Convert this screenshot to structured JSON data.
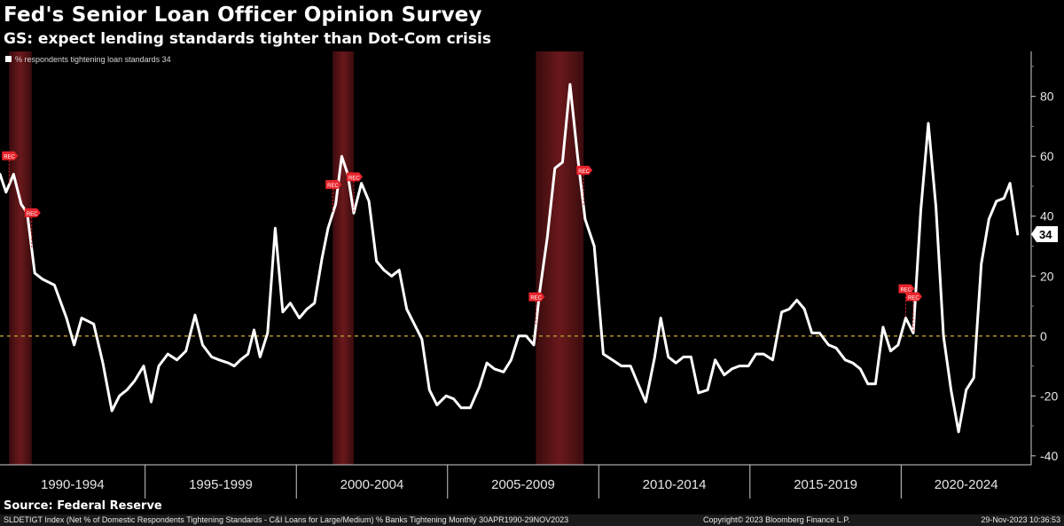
{
  "header": {
    "title": "Fed's Senior Loan Officer Opinion Survey",
    "subtitle": "GS: expect lending standards tighter than Dot-Com crisis"
  },
  "footer": {
    "source": "Source: Federal Reserve",
    "index_note": "SLDETIGT Index (Net % of Domestic Respondents Tightening Standards - C&I Loans for Large/Medium) % Banks Tightening  Monthly 30APR1990-29NOV2023",
    "copyright": "Copyright© 2023 Bloomberg Finance L.P.",
    "timestamp": "29-Nov-2023 10:36:53"
  },
  "colors": {
    "background": "#000000",
    "line": "#ffffff",
    "recession_shade": "#5a1416",
    "zero_line": "#a08a2c",
    "rec_marker": "#e8242c"
  },
  "chart_data": {
    "type": "line",
    "title": "Fed's Senior Loan Officer Opinion Survey",
    "subtitle": "GS: expect lending standards tighter than Dot-Com crisis",
    "legend": {
      "label": "% respondents tightening loan standards 34",
      "placement": "top-left"
    },
    "last_value_label": "34",
    "ylim": [
      -43,
      95
    ],
    "y_ticks": [
      -40,
      -20,
      0,
      20,
      40,
      60,
      80
    ],
    "y_tick_labels": [
      "-40",
      "-20",
      "0",
      "20",
      "40",
      "60",
      "80"
    ],
    "xlim": [
      1990.2,
      2024.3
    ],
    "x_period_labels": [
      "1990-1994",
      "1995-1999",
      "2000-2004",
      "2005-2009",
      "2010-2014",
      "2015-2019",
      "2020-2024"
    ],
    "x_period_bounds": [
      1990,
      1995,
      2000,
      2005,
      2010,
      2015,
      2020,
      2025
    ],
    "zero_line": true,
    "grid": false,
    "recessions": [
      [
        1990.5,
        1991.25
      ],
      [
        2001.2,
        2001.9
      ],
      [
        2007.92,
        2009.5
      ]
    ],
    "rec_marker_label": "REC",
    "series": [
      {
        "name": "% respondents tightening loan standards",
        "x": [
          1990.2,
          1990.4,
          1990.65,
          1990.9,
          1991.1,
          1991.35,
          1991.6,
          1992.0,
          1992.4,
          1992.65,
          1992.9,
          1993.3,
          1993.6,
          1993.9,
          1994.15,
          1994.4,
          1994.65,
          1994.95,
          1995.2,
          1995.45,
          1995.75,
          1996.05,
          1996.35,
          1996.65,
          1996.9,
          1997.2,
          1997.45,
          1997.75,
          1997.95,
          1998.15,
          1998.4,
          1998.6,
          1998.8,
          1999.05,
          1999.3,
          1999.55,
          1999.8,
          2000.1,
          2000.35,
          2000.6,
          2000.85,
          2001.05,
          2001.3,
          2001.5,
          2001.7,
          2001.9,
          2002.15,
          2002.4,
          2002.65,
          2002.9,
          2003.15,
          2003.4,
          2003.65,
          2003.9,
          2004.15,
          2004.4,
          2004.65,
          2004.95,
          2005.2,
          2005.45,
          2005.75,
          2006.05,
          2006.3,
          2006.55,
          2006.85,
          2007.1,
          2007.35,
          2007.6,
          2007.85,
          2008.05,
          2008.3,
          2008.55,
          2008.8,
          2009.05,
          2009.3,
          2009.55,
          2009.85,
          2010.15,
          2010.45,
          2010.75,
          2011.05,
          2011.3,
          2011.55,
          2011.85,
          2012.05,
          2012.3,
          2012.55,
          2012.8,
          2013.05,
          2013.3,
          2013.6,
          2013.85,
          2014.15,
          2014.4,
          2014.65,
          2014.95,
          2015.2,
          2015.45,
          2015.75,
          2016.05,
          2016.3,
          2016.55,
          2016.8,
          2017.05,
          2017.3,
          2017.6,
          2017.85,
          2018.15,
          2018.4,
          2018.65,
          2018.9,
          2019.15,
          2019.4,
          2019.65,
          2019.9,
          2020.15,
          2020.4,
          2020.65,
          2020.9,
          2021.15,
          2021.4,
          2021.65,
          2021.9,
          2022.15,
          2022.4,
          2022.65,
          2022.9,
          2023.15,
          2023.4,
          2023.6,
          2023.85
        ],
        "values": [
          54,
          48,
          54,
          44,
          41,
          21,
          19,
          17,
          6,
          -3,
          6,
          4,
          -9,
          -25,
          -20,
          -18,
          -15,
          -10,
          -22,
          -10,
          -6,
          -8,
          -5,
          7,
          -3,
          -7,
          -8,
          -9,
          -10,
          -8,
          -6,
          2,
          -7,
          1,
          36,
          8,
          11,
          6,
          9,
          11,
          26,
          36,
          44,
          60,
          54,
          41,
          51,
          45,
          25,
          22,
          20,
          22,
          9,
          4,
          -1,
          -18,
          -23,
          -20,
          -21,
          -24,
          -24,
          -17,
          -9,
          -11,
          -12,
          -8,
          0,
          0,
          -3,
          15,
          33,
          56,
          58,
          84,
          60,
          39,
          30,
          -6,
          -8,
          -10,
          -10,
          -16,
          -22,
          -7,
          6,
          -7,
          -9,
          -7,
          -7,
          -19,
          -18,
          -8,
          -13,
          -11,
          -10,
          -10,
          -6,
          -6,
          -8,
          8,
          9,
          12,
          9,
          1,
          1,
          -3,
          -4,
          -8,
          -9,
          -11,
          -16,
          -16,
          3,
          -5,
          -3,
          6,
          1,
          42,
          71,
          43,
          0,
          -18,
          -32,
          -18,
          -14,
          24,
          39,
          45,
          46,
          51,
          34
        ]
      }
    ]
  }
}
